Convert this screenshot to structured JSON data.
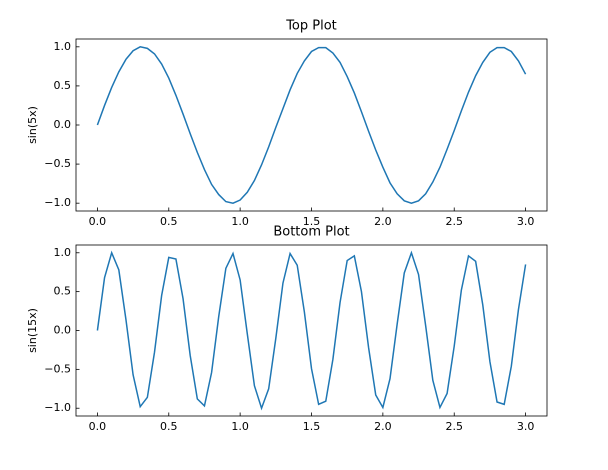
{
  "chart_data": [
    {
      "type": "line",
      "title": "Top Plot",
      "y_label": "sin(5x)",
      "x": [
        0,
        0.05,
        0.1,
        0.15,
        0.2,
        0.25,
        0.3,
        0.35,
        0.4,
        0.45,
        0.5,
        0.55,
        0.6,
        0.65,
        0.7,
        0.75,
        0.8,
        0.85,
        0.9,
        0.95,
        1.0,
        1.05,
        1.1,
        1.15,
        1.2,
        1.25,
        1.3,
        1.35,
        1.4,
        1.45,
        1.5,
        1.55,
        1.6,
        1.65,
        1.7,
        1.75,
        1.8,
        1.85,
        1.9,
        1.95,
        2.0,
        2.05,
        2.1,
        2.15,
        2.2,
        2.25,
        2.3,
        2.35,
        2.4,
        2.45,
        2.5,
        2.55,
        2.6,
        2.65,
        2.7,
        2.75,
        2.8,
        2.85,
        2.9,
        2.95,
        3.0
      ],
      "series": [
        {
          "color": "#1f77b4",
          "values": [
            0,
            0.25,
            0.48,
            0.68,
            0.84,
            0.95,
            1.0,
            0.98,
            0.91,
            0.78,
            0.6,
            0.38,
            0.14,
            -0.11,
            -0.35,
            -0.57,
            -0.76,
            -0.89,
            -0.98,
            -1.0,
            -0.96,
            -0.86,
            -0.71,
            -0.51,
            -0.28,
            -0.03,
            0.21,
            0.45,
            0.66,
            0.82,
            0.94,
            0.99,
            0.99,
            0.92,
            0.8,
            0.62,
            0.41,
            0.17,
            -0.08,
            -0.32,
            -0.54,
            -0.74,
            -0.88,
            -0.97,
            -1.0,
            -0.97,
            -0.88,
            -0.73,
            -0.54,
            -0.31,
            -0.07,
            0.18,
            0.42,
            0.63,
            0.8,
            0.93,
            0.99,
            0.99,
            0.94,
            0.82,
            0.65
          ]
        }
      ],
      "xlim": [
        -0.15,
        3.15
      ],
      "ylim": [
        -1.1,
        1.1
      ],
      "xticks": [
        {
          "value": 0,
          "label": "0.0"
        },
        0.5,
        {
          "value": 1,
          "label": "1.0"
        },
        1.5,
        {
          "value": 2,
          "label": "2.0"
        },
        2.5,
        {
          "value": 3,
          "label": "3.0"
        }
      ],
      "yticks": [
        {
          "value": -1,
          "label": "−1.0"
        },
        {
          "value": -0.5,
          "label": "−0.5"
        },
        {
          "value": 0,
          "label": "0.0"
        },
        0.5,
        {
          "value": 1,
          "label": "1.0"
        }
      ]
    },
    {
      "type": "line",
      "title": "Bottom Plot",
      "y_label": "sin(15x)",
      "x": [
        0,
        0.05,
        0.1,
        0.15,
        0.2,
        0.25,
        0.3,
        0.35,
        0.4,
        0.45,
        0.5,
        0.55,
        0.6,
        0.65,
        0.7,
        0.75,
        0.8,
        0.85,
        0.9,
        0.95,
        1.0,
        1.05,
        1.1,
        1.15,
        1.2,
        1.25,
        1.3,
        1.35,
        1.4,
        1.45,
        1.5,
        1.55,
        1.6,
        1.65,
        1.7,
        1.75,
        1.8,
        1.85,
        1.9,
        1.95,
        2.0,
        2.05,
        2.1,
        2.15,
        2.2,
        2.25,
        2.3,
        2.35,
        2.4,
        2.45,
        2.5,
        2.55,
        2.6,
        2.65,
        2.7,
        2.75,
        2.8,
        2.85,
        2.9,
        2.95,
        3.0
      ],
      "series": [
        {
          "color": "#1f77b4",
          "values": [
            0,
            0.68,
            1.0,
            0.78,
            0.14,
            -0.57,
            -0.98,
            -0.86,
            -0.28,
            0.45,
            0.94,
            0.92,
            0.41,
            -0.32,
            -0.88,
            -0.97,
            -0.54,
            0.18,
            0.8,
            0.99,
            0.65,
            -0.04,
            -0.71,
            -1.0,
            -0.75,
            -0.1,
            0.61,
            0.99,
            0.84,
            0.24,
            -0.49,
            -0.95,
            -0.91,
            -0.37,
            0.36,
            0.9,
            0.96,
            0.5,
            -0.22,
            -0.83,
            -0.99,
            -0.62,
            0.08,
            0.74,
            1.0,
            0.72,
            0.06,
            -0.64,
            -0.99,
            -0.81,
            -0.2,
            0.52,
            0.96,
            0.89,
            0.33,
            -0.4,
            -0.92,
            -0.95,
            -0.46,
            0.27,
            0.85
          ]
        }
      ],
      "xlim": [
        -0.15,
        3.15
      ],
      "ylim": [
        -1.1,
        1.1
      ],
      "xticks": [
        {
          "value": 0,
          "label": "0.0"
        },
        0.5,
        {
          "value": 1,
          "label": "1.0"
        },
        1.5,
        {
          "value": 2,
          "label": "2.0"
        },
        2.5,
        {
          "value": 3,
          "label": "3.0"
        }
      ],
      "yticks": [
        {
          "value": -1,
          "label": "−1.0"
        },
        {
          "value": -0.5,
          "label": "−0.5"
        },
        {
          "value": 0,
          "label": "0.0"
        },
        0.5,
        {
          "value": 1,
          "label": "1.0"
        }
      ]
    }
  ]
}
